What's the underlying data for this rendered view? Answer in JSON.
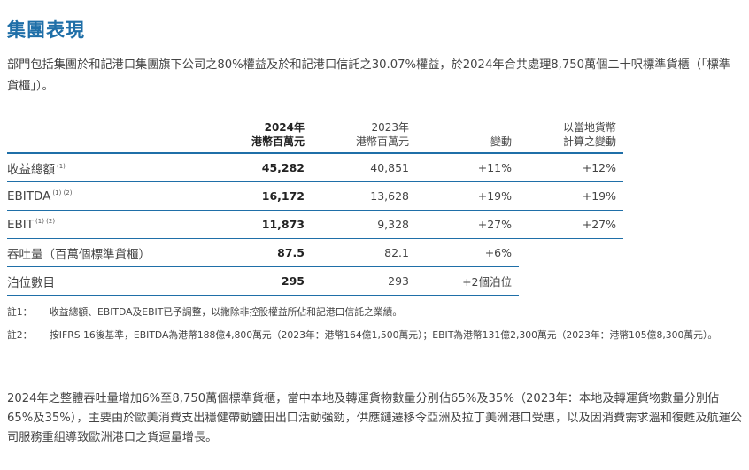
{
  "title": "集團表現",
  "intro": "部門包括集團於和記港口集團旗下公司之80%權益及於和記港口信託之30.07%權益，於2024年合共處理8,750萬個二十呎標準貨櫃（「標準貨櫃」）。",
  "table": {
    "headers": {
      "col_2024_line1": "2024年",
      "col_2024_line2": "港幣百萬元",
      "col_2023_line1": "2023年",
      "col_2023_line2": "港幣百萬元",
      "col_change": "變動",
      "col_local_line1": "以當地貨幣",
      "col_local_line2": "計算之變動"
    },
    "rows": [
      {
        "label": "收益總額",
        "footnote": "(1)",
        "v2024": "45,282",
        "v2023": "40,851",
        "change": "+11%",
        "local": "+12%"
      },
      {
        "label": "EBITDA",
        "footnote": "(1) (2)",
        "v2024": "16,172",
        "v2023": "13,628",
        "change": "+19%",
        "local": "+19%"
      },
      {
        "label": "EBIT",
        "footnote": "(1) (2)",
        "v2024": "11,873",
        "v2023": "9,328",
        "change": "+27%",
        "local": "+27%"
      },
      {
        "label": "吞吐量（百萬個標準貨櫃）",
        "footnote": "",
        "v2024": "87.5",
        "v2023": "82.1",
        "change": "+6%",
        "local": ""
      },
      {
        "label": "泊位數目",
        "footnote": "",
        "v2024": "295",
        "v2023": "293",
        "change": "+2個泊位",
        "local": ""
      }
    ]
  },
  "notes": [
    {
      "label": "註1：",
      "text": "收益總額、EBITDA及EBIT已予調整，以撇除非控股權益所佔和記港口信託之業績。"
    },
    {
      "label": "註2：",
      "text": "按IFRS 16後基準，EBITDA為港幣188億4,800萬元（2023年：港幣164億1,500萬元）；EBIT為港幣131億2,300萬元（2023年：港幣105億8,300萬元）。"
    }
  ],
  "closing": "2024年之整體吞吐量增加6%至8,750萬個標準貨櫃，當中本地及轉運貨物數量分別佔65%及35%（2023年：本地及轉運貨物數量分別佔65%及35%），主要由於歐美消費支出穩健帶動鹽田出口活動強勁，供應鏈遷移令亞洲及拉丁美洲港口受惠，以及因消費需求溫和復甦及航運公司服務重組導致歐洲港口之貨運量增長。"
}
